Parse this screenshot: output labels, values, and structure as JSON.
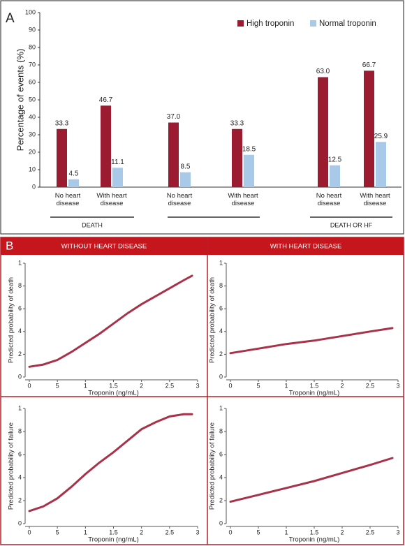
{
  "chart_data": [
    {
      "type": "bar",
      "panel_label": "A",
      "ylabel": "Percentage of events (%)",
      "categories": [
        "No heart disease",
        "With heart disease",
        "No heart disease",
        "With heart disease",
        "No heart disease",
        "With heart disease"
      ],
      "group_labels": [
        "DEATH",
        null,
        "DEATH OR HF"
      ],
      "series": [
        {
          "name": "High troponin",
          "color": "#9b1b30",
          "values": [
            33.3,
            46.7,
            37.0,
            33.3,
            63.0,
            66.7
          ],
          "value_labels": [
            "33.3",
            "46.7",
            "37.0",
            "33.3",
            "63.0",
            "66.7"
          ]
        },
        {
          "name": "Normal troponin",
          "color": "#a9c9e8",
          "values": [
            4.5,
            11.1,
            8.5,
            18.5,
            12.5,
            25.9
          ],
          "value_labels": [
            "4.5",
            "11.1",
            "8.5",
            "18.5",
            "12.5",
            "25.9"
          ]
        }
      ],
      "ylim": [
        0,
        100
      ],
      "yticks": [
        0,
        10,
        20,
        30,
        40,
        50,
        60,
        70,
        80,
        90,
        100
      ]
    },
    {
      "type": "line",
      "panel_label": "B",
      "header": "WITHOUT HEART DISEASE",
      "xlabel": "Troponin (ng/mL)",
      "ylabel": "Predicted probability of death",
      "color": "#a8324a",
      "x": [
        0,
        0.25,
        0.5,
        0.75,
        1,
        1.25,
        1.5,
        1.75,
        2,
        2.25,
        2.5,
        2.75,
        2.9
      ],
      "values": [
        0.09,
        0.11,
        0.15,
        0.22,
        0.3,
        0.38,
        0.47,
        0.56,
        0.64,
        0.71,
        0.78,
        0.85,
        0.89
      ],
      "xlim": [
        0,
        3
      ],
      "xticks": [
        0,
        {
          "value": 0.5,
          "label": "5"
        },
        1,
        1.5,
        2,
        2.5,
        3
      ],
      "ylim": [
        0,
        1
      ],
      "yticks": [
        0,
        {
          "value": 0.2,
          "label": "2"
        },
        {
          "value": 0.4,
          "label": "4"
        },
        {
          "value": 0.6,
          "label": "6"
        },
        {
          "value": 0.8,
          "label": "8"
        },
        1
      ]
    },
    {
      "type": "line",
      "header": "WITH HEART DISEASE",
      "xlabel": "Troponin (ng/mL)",
      "ylabel": "Predicted probability of death",
      "color": "#a8324a",
      "x": [
        0,
        0.5,
        1,
        1.5,
        2,
        2.5,
        2.9
      ],
      "values": [
        0.21,
        0.25,
        0.29,
        0.32,
        0.36,
        0.4,
        0.43
      ],
      "xlim": [
        0,
        3
      ],
      "xticks": [
        0,
        {
          "value": 0.5,
          "label": "5"
        },
        1,
        1.5,
        2,
        2.5,
        3
      ],
      "ylim": [
        0,
        1
      ],
      "yticks": [
        0,
        {
          "value": 0.2,
          "label": "2"
        },
        {
          "value": 0.4,
          "label": "4"
        },
        {
          "value": 0.6,
          "label": "6"
        },
        {
          "value": 0.8,
          "label": "8"
        },
        1
      ]
    },
    {
      "type": "line",
      "xlabel": "Troponin (ng/mL)",
      "ylabel": "Predicted probability of failure",
      "color": "#a8324a",
      "x": [
        0,
        0.25,
        0.5,
        0.75,
        1,
        1.25,
        1.5,
        1.75,
        2,
        2.25,
        2.5,
        2.75,
        2.9
      ],
      "values": [
        0.11,
        0.15,
        0.22,
        0.32,
        0.43,
        0.53,
        0.62,
        0.72,
        0.82,
        0.88,
        0.93,
        0.95,
        0.95
      ],
      "xlim": [
        0,
        3
      ],
      "xticks": [
        0,
        {
          "value": 0.5,
          "label": "5"
        },
        1,
        1.5,
        2,
        2.5,
        3
      ],
      "ylim": [
        0,
        1
      ],
      "yticks": [
        0,
        {
          "value": 0.2,
          "label": "2"
        },
        {
          "value": 0.4,
          "label": "4"
        },
        {
          "value": 0.6,
          "label": "6"
        },
        {
          "value": 0.8,
          "label": "8"
        },
        1
      ]
    },
    {
      "type": "line",
      "xlabel": "Troponin (ng/mL)",
      "ylabel": "Predicted probability of failure",
      "color": "#a8324a",
      "x": [
        0,
        0.5,
        1,
        1.5,
        2,
        2.5,
        2.9
      ],
      "values": [
        0.19,
        0.25,
        0.31,
        0.37,
        0.44,
        0.51,
        0.57
      ],
      "xlim": [
        0,
        3
      ],
      "xticks": [
        0,
        {
          "value": 0.5,
          "label": "5"
        },
        1,
        1.5,
        2,
        2.5,
        3
      ],
      "ylim": [
        0,
        1
      ],
      "yticks": [
        0,
        {
          "value": 0.2,
          "label": "2"
        },
        {
          "value": 0.4,
          "label": "4"
        },
        {
          "value": 0.6,
          "label": "6"
        },
        {
          "value": 0.8,
          "label": "8"
        },
        1
      ]
    }
  ]
}
